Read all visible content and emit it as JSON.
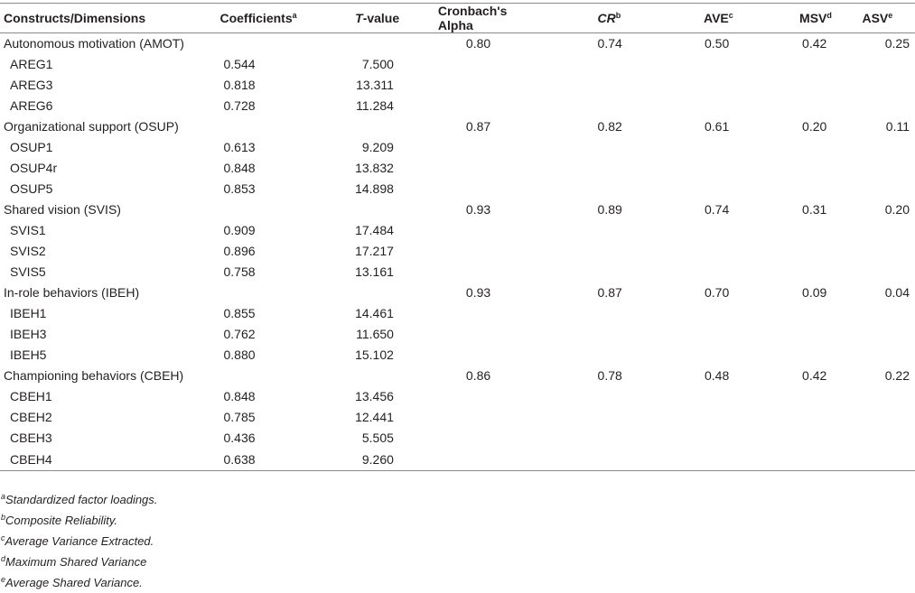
{
  "headers": {
    "constructs": "Constructs/Dimensions",
    "coefficients": "Coefficients",
    "coefficients_sup": "a",
    "t_prefix": "T",
    "t_suffix": "-value",
    "alpha": "Cronbach's Alpha",
    "cr": "CR",
    "cr_sup": "b",
    "ave": "AVE",
    "ave_sup": "c",
    "msv": "MSV",
    "msv_sup": "d",
    "asv": "ASV",
    "asv_sup": "e"
  },
  "groups": [
    {
      "name": "Autonomous motivation (AMOT)",
      "alpha": "0.80",
      "cr": "0.74",
      "ave": "0.50",
      "msv": "0.42",
      "asv": "0.25",
      "items": [
        {
          "label": "AREG1",
          "coef": "0.544",
          "t": "7.500"
        },
        {
          "label": "AREG3",
          "coef": "0.818",
          "t": "13.311"
        },
        {
          "label": "AREG6",
          "coef": "0.728",
          "t": "11.284"
        }
      ]
    },
    {
      "name": "Organizational support (OSUP)",
      "alpha": "0.87",
      "cr": "0.82",
      "ave": "0.61",
      "msv": "0.20",
      "asv": "0.11",
      "items": [
        {
          "label": "OSUP1",
          "coef": "0.613",
          "t": "9.209"
        },
        {
          "label": "OSUP4r",
          "coef": "0.848",
          "t": "13.832"
        },
        {
          "label": "OSUP5",
          "coef": "0.853",
          "t": "14.898"
        }
      ]
    },
    {
      "name": "Shared vision (SVIS)",
      "alpha": "0.93",
      "cr": "0.89",
      "ave": "0.74",
      "msv": "0.31",
      "asv": "0.20",
      "items": [
        {
          "label": "SVIS1",
          "coef": "0.909",
          "t": "17.484"
        },
        {
          "label": "SVIS2",
          "coef": "0.896",
          "t": "17.217"
        },
        {
          "label": "SVIS5",
          "coef": "0.758",
          "t": "13.161"
        }
      ]
    },
    {
      "name": "In-role behaviors (IBEH)",
      "alpha": "0.93",
      "cr": "0.87",
      "ave": "0.70",
      "msv": "0.09",
      "asv": "0.04",
      "items": [
        {
          "label": "IBEH1",
          "coef": "0.855",
          "t": "14.461"
        },
        {
          "label": "IBEH3",
          "coef": "0.762",
          "t": "11.650"
        },
        {
          "label": "IBEH5",
          "coef": "0.880",
          "t": "15.102"
        }
      ]
    },
    {
      "name": "Championing behaviors (CBEH)",
      "alpha": "0.86",
      "cr": "0.78",
      "ave": "0.48",
      "msv": "0.42",
      "asv": "0.22",
      "items": [
        {
          "label": "CBEH1",
          "coef": "0.848",
          "t": "13.456"
        },
        {
          "label": "CBEH2",
          "coef": "0.785",
          "t": "12.441"
        },
        {
          "label": "CBEH3",
          "coef": "0.436",
          "t": "5.505"
        },
        {
          "label": "CBEH4",
          "coef": "0.638",
          "t": "9.260"
        }
      ]
    }
  ],
  "footnotes": [
    {
      "mark": "a",
      "text": "Standardized factor loadings."
    },
    {
      "mark": "b",
      "text": "Composite Reliability."
    },
    {
      "mark": "c",
      "text": "Average Variance Extracted."
    },
    {
      "mark": "d",
      "text": "Maximum Shared Variance"
    },
    {
      "mark": "e",
      "text": "Average Shared Variance."
    }
  ]
}
